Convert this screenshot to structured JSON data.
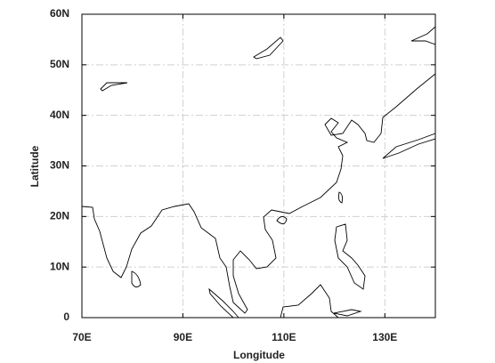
{
  "chart_data": {
    "type": "map",
    "xlabel": "Longitude",
    "ylabel": "Latitude",
    "xlim": [
      70,
      140
    ],
    "ylim": [
      0,
      60
    ],
    "xticks": [
      {
        "value": 70,
        "label": "70E"
      },
      {
        "value": 90,
        "label": "90E"
      },
      {
        "value": 110,
        "label": "110E"
      },
      {
        "value": 130,
        "label": "130E"
      }
    ],
    "yticks": [
      0,
      {
        "value": 10,
        "label": "10N"
      },
      {
        "value": 20,
        "label": "20N"
      },
      {
        "value": 30,
        "label": "30N"
      },
      {
        "value": 40,
        "label": "40N"
      },
      {
        "value": 50,
        "label": "50N"
      },
      {
        "value": 60,
        "label": "60N"
      }
    ],
    "grid": true
  }
}
